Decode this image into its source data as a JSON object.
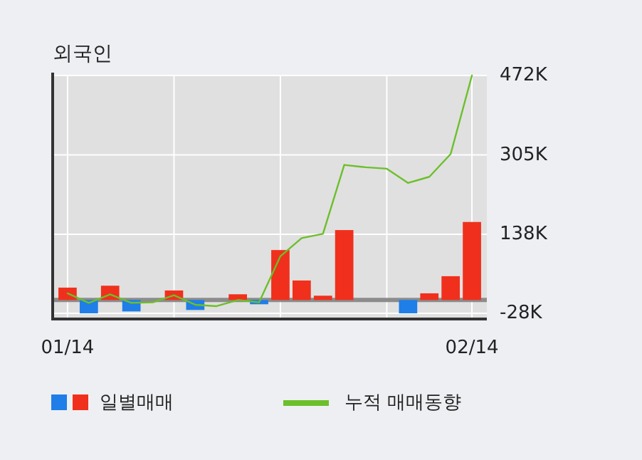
{
  "chart_data": {
    "type": "bar",
    "title": "외국인",
    "categories": [
      "01/14",
      null,
      null,
      null,
      null,
      null,
      null,
      null,
      null,
      null,
      null,
      null,
      null,
      null,
      null,
      null,
      null,
      null,
      null,
      "02/14"
    ],
    "series": [
      {
        "name": "일별매매",
        "colors": [
          "#f0301c",
          "#1f7ee8",
          "#f0301c",
          "#1f7ee8",
          "#f0301c",
          "#f0301c",
          "#1f7ee8",
          "#f0301c",
          "#f0301c",
          "#1f7ee8",
          "#f0301c",
          "#f0301c",
          "#f0301c",
          "#f0301c",
          "#f0301c",
          "#f0301c",
          "#1f7ee8",
          "#f0301c",
          "#f0301c",
          "#f0301c"
        ],
        "values": [
          26,
          -28,
          30,
          -24,
          0,
          20,
          -21,
          0,
          12,
          -9,
          105,
          41,
          9,
          147,
          0,
          0,
          -28,
          14,
          50,
          164
        ]
      },
      {
        "name": "누적 매매동향",
        "type": "line",
        "color": "#6cbf2a",
        "values": [
          14,
          -6,
          12,
          -6,
          -5,
          10,
          -10,
          -13,
          0,
          -5,
          92,
          130,
          139,
          284,
          279,
          276,
          246,
          259,
          307,
          472
        ]
      }
    ],
    "ylim": [
      -40,
      472
    ],
    "yticks": [
      {
        "value": 472,
        "label": "472K"
      },
      {
        "value": 305,
        "label": "305K"
      },
      {
        "value": 138,
        "label": "138K"
      },
      {
        "value": -28,
        "label": "-28K"
      }
    ],
    "ref_lines": [
      {
        "axis": "y",
        "value": 0,
        "color": "#8c8c8c"
      }
    ],
    "grid": true,
    "legend": "bottom"
  }
}
